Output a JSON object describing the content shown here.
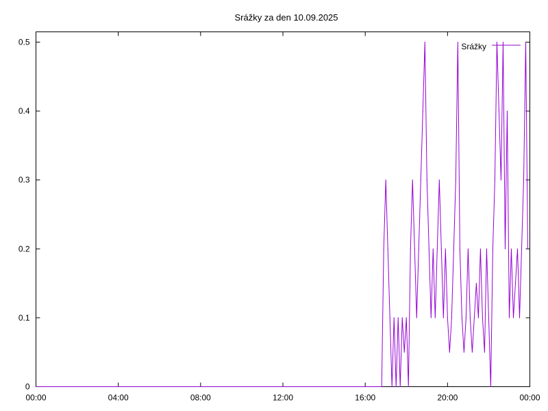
{
  "chart_data": {
    "type": "line",
    "title": "Srážky za den 10.09.2025",
    "xlabel": "",
    "ylabel": "",
    "x_range_hours": [
      0,
      24
    ],
    "ylim": [
      0,
      0.5
    ],
    "x_ticks": [
      "00:00",
      "04:00",
      "08:00",
      "12:00",
      "16:00",
      "20:00",
      "00:00"
    ],
    "y_ticks": [
      "0",
      "0.1",
      "0.2",
      "0.3",
      "0.4",
      "0.5"
    ],
    "grid": false,
    "legend_position": "top-right",
    "series": [
      {
        "name": "Srážky",
        "color": "#9400d3",
        "x": [
          "00:00",
          "16:48",
          "16:54",
          "17:00",
          "17:06",
          "17:12",
          "17:18",
          "17:24",
          "17:30",
          "17:36",
          "17:42",
          "17:48",
          "17:54",
          "18:00",
          "18:06",
          "18:12",
          "18:18",
          "18:24",
          "18:30",
          "18:36",
          "18:42",
          "18:48",
          "18:54",
          "19:00",
          "19:06",
          "19:12",
          "19:18",
          "19:24",
          "19:30",
          "19:36",
          "19:42",
          "19:48",
          "19:54",
          "20:00",
          "20:06",
          "20:12",
          "20:18",
          "20:24",
          "20:30",
          "20:36",
          "20:42",
          "20:48",
          "20:54",
          "21:00",
          "21:06",
          "21:12",
          "21:18",
          "21:24",
          "21:30",
          "21:36",
          "21:42",
          "21:48",
          "21:54",
          "22:00",
          "22:06",
          "22:12",
          "22:18",
          "22:24",
          "22:30",
          "22:36",
          "22:42",
          "22:48",
          "22:54",
          "23:00",
          "23:06",
          "23:12",
          "23:18",
          "23:24",
          "23:30",
          "23:36",
          "23:42",
          "23:48",
          "23:54"
        ],
        "y": [
          0,
          0,
          0.2,
          0.3,
          0.2,
          0.1,
          0,
          0.1,
          0,
          0.1,
          0,
          0.1,
          0.05,
          0.1,
          0,
          0.2,
          0.3,
          0.2,
          0.1,
          0.2,
          0.3,
          0.4,
          0.5,
          0.3,
          0.2,
          0.1,
          0.2,
          0.1,
          0.2,
          0.3,
          0.2,
          0.1,
          0.2,
          0.1,
          0.05,
          0.1,
          0.2,
          0.3,
          0.5,
          0.2,
          0.1,
          0.05,
          0.1,
          0.2,
          0.1,
          0.05,
          0.1,
          0.15,
          0.1,
          0.2,
          0.1,
          0.05,
          0.2,
          0.1,
          0,
          0.2,
          0.3,
          0.5,
          0.4,
          0.3,
          0.5,
          0.2,
          0.4,
          0.1,
          0.2,
          0.1,
          0.15,
          0.2,
          0.1,
          0.2,
          0.3,
          0.5,
          0.2
        ]
      }
    ]
  }
}
